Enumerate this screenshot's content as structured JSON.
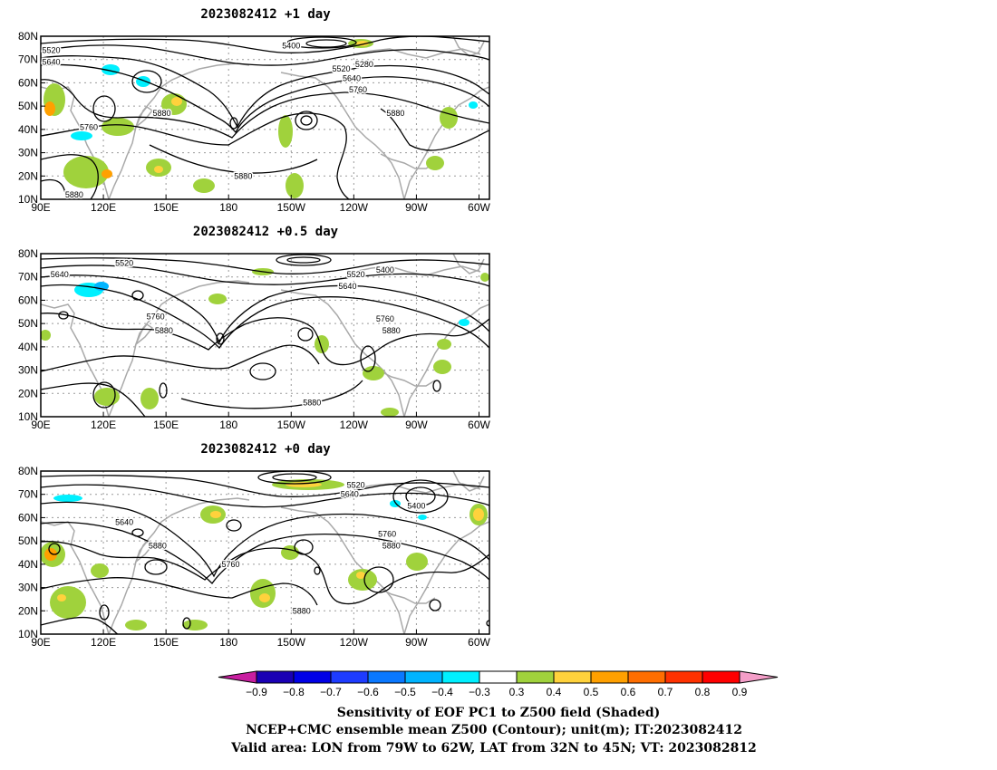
{
  "panels": [
    {
      "title": "2023082412 +1 day",
      "contour_labels": [
        {
          "value": "5400",
          "lon": 210,
          "lat": 76
        },
        {
          "value": "5520",
          "lon": 95,
          "lat": 74
        },
        {
          "value": "5520",
          "lon": 234,
          "lat": 66
        },
        {
          "value": "5640",
          "lon": 95,
          "lat": 69
        },
        {
          "value": "5640",
          "lon": 239,
          "lat": 62
        },
        {
          "value": "5760",
          "lon": 242,
          "lat": 57
        },
        {
          "value": "5280",
          "lon": 245,
          "lat": 68
        },
        {
          "value": "5880",
          "lon": 148,
          "lat": 47
        },
        {
          "value": "5880",
          "lon": 260,
          "lat": 47
        },
        {
          "value": "5760",
          "lon": 113,
          "lat": 41
        },
        {
          "value": "5880",
          "lon": 187,
          "lat": 20
        },
        {
          "value": "5880",
          "lon": 106,
          "lat": 12
        }
      ]
    },
    {
      "title": "2023082412 +0.5 day",
      "contour_labels": [
        {
          "value": "5520",
          "lon": 130,
          "lat": 76
        },
        {
          "value": "5640",
          "lon": 99,
          "lat": 71
        },
        {
          "value": "5520",
          "lon": 241,
          "lat": 71
        },
        {
          "value": "5400",
          "lon": 255,
          "lat": 73
        },
        {
          "value": "5640",
          "lon": 237,
          "lat": 66
        },
        {
          "value": "5760",
          "lon": 145,
          "lat": 53
        },
        {
          "value": "5880",
          "lon": 149,
          "lat": 47
        },
        {
          "value": "5760",
          "lon": 255,
          "lat": 52
        },
        {
          "value": "5880",
          "lon": 258,
          "lat": 47
        },
        {
          "value": "5880",
          "lon": 220,
          "lat": 16
        }
      ]
    },
    {
      "title": "2023082412 +0 day",
      "contour_labels": [
        {
          "value": "5520",
          "lon": 241,
          "lat": 74
        },
        {
          "value": "5640",
          "lon": 238,
          "lat": 70
        },
        {
          "value": "5400",
          "lon": 270,
          "lat": 65
        },
        {
          "value": "5640",
          "lon": 130,
          "lat": 58
        },
        {
          "value": "5880",
          "lon": 146,
          "lat": 48
        },
        {
          "value": "5760",
          "lon": 256,
          "lat": 53
        },
        {
          "value": "5880",
          "lon": 258,
          "lat": 48
        },
        {
          "value": "5760",
          "lon": 181,
          "lat": 40
        },
        {
          "value": "5880",
          "lon": 215,
          "lat": 20
        }
      ]
    }
  ],
  "map": {
    "lon_range": [
      90,
      305
    ],
    "lat_range": [
      10,
      80
    ],
    "lat_ticks": [
      {
        "value": 80,
        "label": "80N"
      },
      {
        "value": 70,
        "label": "70N"
      },
      {
        "value": 60,
        "label": "60N"
      },
      {
        "value": 50,
        "label": "50N"
      },
      {
        "value": 40,
        "label": "40N"
      },
      {
        "value": 30,
        "label": "30N"
      },
      {
        "value": 20,
        "label": "20N"
      },
      {
        "value": 10,
        "label": "10N"
      }
    ],
    "lon_ticks": [
      {
        "value": 90,
        "label": "90E"
      },
      {
        "value": 120,
        "label": "120E"
      },
      {
        "value": 150,
        "label": "150E"
      },
      {
        "value": 180,
        "label": "180"
      },
      {
        "value": 210,
        "label": "150W"
      },
      {
        "value": 240,
        "label": "120W"
      },
      {
        "value": 270,
        "label": "90W"
      },
      {
        "value": 300,
        "label": "60W"
      }
    ],
    "gridline_lons": [
      90,
      120,
      150,
      180,
      210,
      240,
      270,
      300
    ],
    "gridline_lats": [
      20,
      30,
      40,
      50,
      60,
      70
    ]
  },
  "colorbar": {
    "labels": [
      "−0.9",
      "−0.8",
      "−0.7",
      "−0.6",
      "−0.5",
      "−0.4",
      "−0.3",
      "0.3",
      "0.4",
      "0.5",
      "0.6",
      "0.7",
      "0.8",
      "0.9"
    ],
    "below_color": "#c81ea0",
    "above_color": "#f49ec8",
    "colors": [
      "#1a00b4",
      "#0000e6",
      "#1e3cff",
      "#0a78ff",
      "#00b4ff",
      "#00f0ff",
      "#ffffff",
      "#a0d23c",
      "#ffd23c",
      "#ffa000",
      "#ff6e00",
      "#ff3200",
      "#ff0000"
    ]
  },
  "caption": {
    "line1": "Sensitivity of EOF PC1 to Z500 field (Shaded)",
    "line2": "NCEP+CMC ensemble mean Z500 (Contour); unit(m); IT:2023082412",
    "line3": "Valid area: LON from 79W to 62W, LAT from 32N to 45N; VT: 2023082812"
  },
  "colors": {
    "contour": "#000000",
    "coastline": "#a9a9a9",
    "grid": "#9a9a9a",
    "positive_shade": "#a0d23c",
    "positive_strong": "#ffd23c",
    "positive_core": "#ffa000",
    "negative_shade": "#00f0ff"
  }
}
